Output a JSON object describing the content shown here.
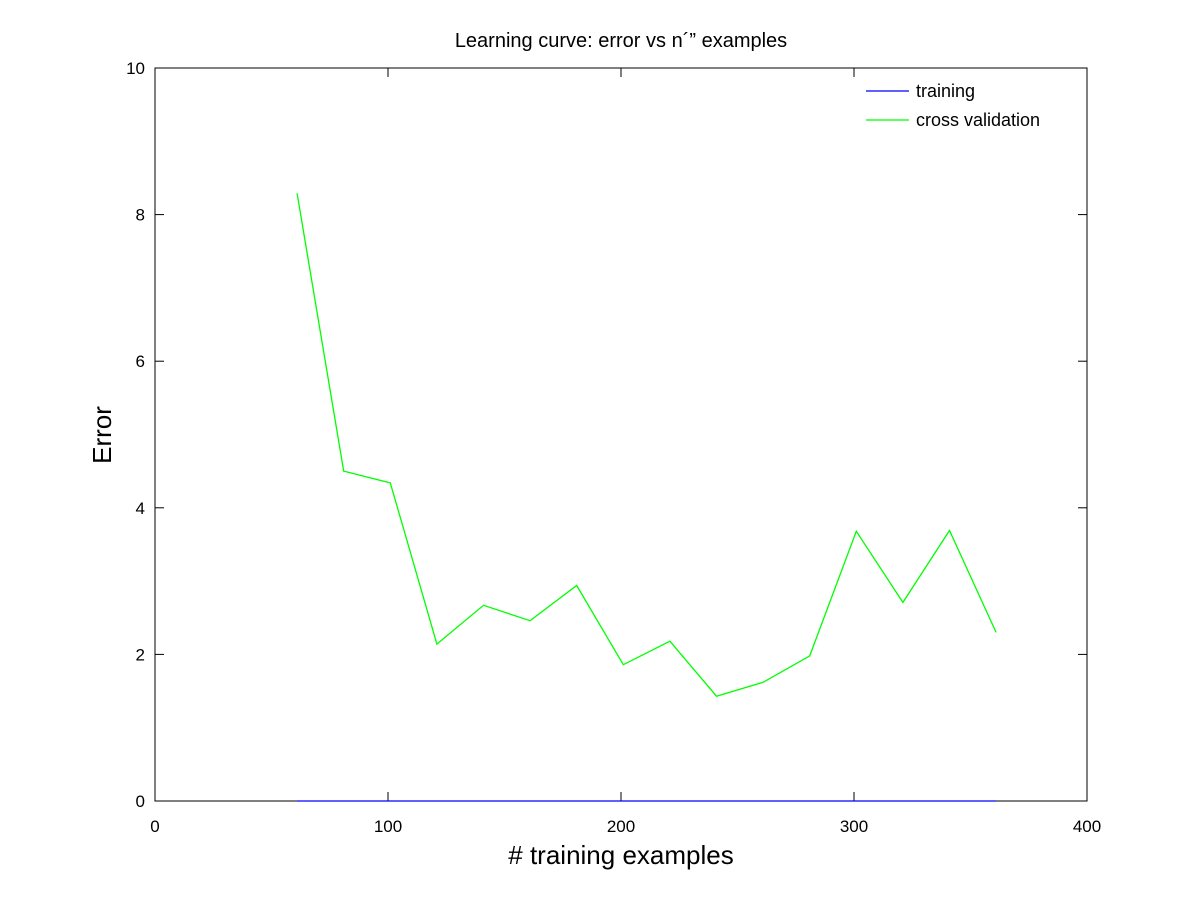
{
  "chart_data": {
    "type": "line",
    "title": "Learning curve: error vs n´” examples",
    "xlabel": "# training examples",
    "ylabel": "Error",
    "xlim": [
      0,
      400
    ],
    "ylim": [
      0,
      10
    ],
    "xticks": [
      0,
      100,
      200,
      300,
      400
    ],
    "yticks": [
      0,
      2,
      4,
      6,
      8,
      10
    ],
    "grid": false,
    "legend_position": "top-right",
    "x": [
      61,
      81,
      101,
      121,
      141,
      161,
      181,
      201,
      221,
      241,
      261,
      281,
      301,
      321,
      341,
      361
    ],
    "series": [
      {
        "name": "training",
        "color": "#0000ff",
        "values": [
          0,
          0,
          0,
          0,
          0,
          0,
          0,
          0,
          0,
          0,
          0,
          0,
          0,
          0,
          0,
          0
        ]
      },
      {
        "name": "cross validation",
        "color": "#00ff00",
        "values": [
          8.29,
          4.5,
          4.34,
          2.14,
          2.67,
          2.46,
          2.94,
          1.86,
          2.18,
          1.43,
          1.62,
          1.98,
          3.68,
          2.71,
          3.69,
          2.3
        ]
      }
    ]
  }
}
